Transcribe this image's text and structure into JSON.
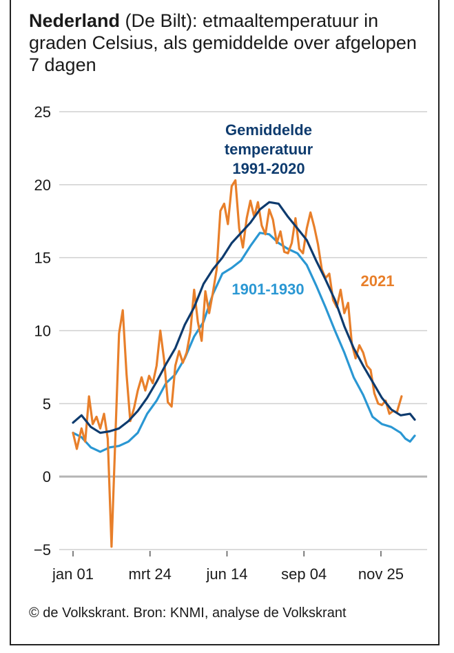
{
  "header": {
    "title_bold": "Nederland",
    "title_rest": " (De Bilt): etmaaltemperatuur in graden Celsius, als gemiddelde over afgelopen 7 dagen"
  },
  "footer": {
    "source": "© de Volkskrant. Bron: KNMI, analyse de Volkskrant"
  },
  "chart_data": {
    "type": "line",
    "ylim": [
      -5,
      25
    ],
    "y_ticks": [
      -5,
      0,
      5,
      10,
      15,
      20,
      25
    ],
    "x_ticks": [
      "jan 01",
      "mrt 24",
      "jun 14",
      "sep 04",
      "nov 25"
    ],
    "x_tick_days": [
      1,
      83,
      165,
      247,
      329
    ],
    "xlim": [
      1,
      365
    ],
    "grid": true,
    "colors": {
      "2021": "#e87f2a",
      "1991-2020": "#0e3b6e",
      "1901-1930": "#2a97d3"
    },
    "series": [
      {
        "name": "2021",
        "label_lines": [
          "2021"
        ],
        "color": "#e87f2a",
        "x": [
          1,
          5,
          10,
          14,
          18,
          22,
          26,
          30,
          34,
          38,
          42,
          46,
          50,
          54,
          58,
          62,
          66,
          70,
          74,
          78,
          82,
          86,
          90,
          94,
          98,
          102,
          106,
          110,
          114,
          118,
          122,
          126,
          130,
          134,
          138,
          142,
          146,
          150,
          154,
          158,
          162,
          166,
          170,
          174,
          178,
          182,
          186,
          190,
          194,
          198,
          202,
          206,
          210,
          214,
          218,
          222,
          226,
          230,
          234,
          238,
          242,
          246,
          250,
          254,
          258,
          262,
          266,
          270,
          274,
          278,
          282,
          286,
          290,
          294,
          298,
          302,
          306,
          310,
          314,
          318,
          322,
          326,
          330,
          334,
          338,
          342,
          346,
          351
        ],
        "values": [
          3.0,
          1.9,
          3.3,
          2.4,
          5.5,
          3.6,
          4.1,
          3.3,
          4.3,
          2.6,
          -4.8,
          2.5,
          9.8,
          11.4,
          7.0,
          3.8,
          4.7,
          5.9,
          6.8,
          5.9,
          6.9,
          6.4,
          7.6,
          10.0,
          8.0,
          5.1,
          4.8,
          7.6,
          8.6,
          7.8,
          8.5,
          9.9,
          12.8,
          10.6,
          9.3,
          12.7,
          11.2,
          12.6,
          14.2,
          18.2,
          18.7,
          17.3,
          19.9,
          20.3,
          17.0,
          15.7,
          17.7,
          18.9,
          17.8,
          18.8,
          17.2,
          16.6,
          18.3,
          17.6,
          16.0,
          16.8,
          15.4,
          15.3,
          16.0,
          17.7,
          15.6,
          15.3,
          17.0,
          18.1,
          17.1,
          15.9,
          14.2,
          13.6,
          13.9,
          12.1,
          11.6,
          12.8,
          11.2,
          11.9,
          9.1,
          8.1,
          9.0,
          8.5,
          7.6,
          7.3,
          5.7,
          5.0,
          4.9,
          5.2,
          4.3,
          4.5,
          4.4,
          5.5
        ]
      },
      {
        "name": "1991-2020",
        "label_lines": [
          "Gemiddelde",
          "temperatuur",
          "1991-2020"
        ],
        "color": "#0e3b6e",
        "x": [
          1,
          10,
          20,
          30,
          40,
          50,
          60,
          70,
          80,
          90,
          100,
          110,
          120,
          130,
          140,
          150,
          160,
          170,
          180,
          190,
          200,
          210,
          220,
          230,
          240,
          250,
          260,
          270,
          280,
          290,
          300,
          310,
          320,
          330,
          340,
          350,
          360,
          365
        ],
        "values": [
          3.7,
          4.2,
          3.4,
          3.0,
          3.1,
          3.3,
          3.8,
          4.5,
          5.4,
          6.5,
          7.7,
          8.8,
          10.4,
          11.6,
          13.2,
          14.2,
          15.0,
          16.0,
          16.7,
          17.4,
          18.3,
          18.8,
          18.7,
          17.8,
          17.0,
          16.2,
          14.8,
          13.5,
          12.1,
          10.3,
          8.8,
          7.6,
          6.5,
          5.4,
          4.6,
          4.2,
          4.3,
          3.9
        ]
      },
      {
        "name": "1901-1930",
        "label_lines": [
          "1901-1930"
        ],
        "color": "#2a97d3",
        "x": [
          1,
          10,
          20,
          30,
          40,
          50,
          60,
          70,
          80,
          90,
          100,
          110,
          120,
          130,
          140,
          150,
          160,
          170,
          180,
          190,
          200,
          210,
          220,
          230,
          240,
          250,
          260,
          270,
          280,
          290,
          300,
          310,
          320,
          330,
          340,
          350,
          355,
          360,
          365
        ],
        "values": [
          3.0,
          2.7,
          2.0,
          1.7,
          2.0,
          2.1,
          2.4,
          3.0,
          4.3,
          5.2,
          6.4,
          7.0,
          8.1,
          9.6,
          10.6,
          12.5,
          13.9,
          14.3,
          14.8,
          15.8,
          16.7,
          16.6,
          16.0,
          15.6,
          15.3,
          14.5,
          13.1,
          11.6,
          10.0,
          8.5,
          6.8,
          5.6,
          4.1,
          3.6,
          3.4,
          3.0,
          2.6,
          2.4,
          2.8
        ]
      }
    ]
  }
}
